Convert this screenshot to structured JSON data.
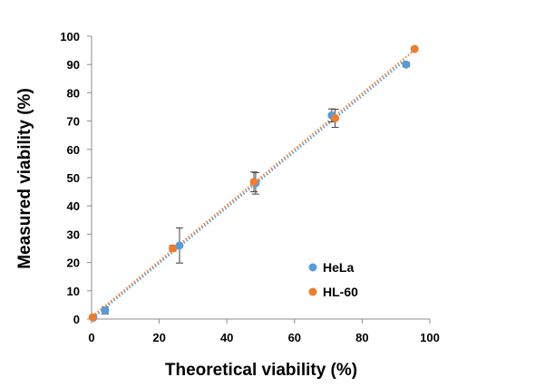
{
  "chart_data": {
    "type": "scatter",
    "xlabel": "Theoretical viability (%)",
    "ylabel": "Measured viability (%)",
    "xlim": [
      0,
      100
    ],
    "ylim": [
      0,
      100
    ],
    "xticks": [
      0,
      20,
      40,
      60,
      80,
      100
    ],
    "yticks": [
      0,
      10,
      20,
      30,
      40,
      50,
      60,
      70,
      80,
      90,
      100
    ],
    "grid": false,
    "legend_position": "bottom-right",
    "trendlines": "dotted linear fit per series",
    "series": [
      {
        "name": "HeLa",
        "color": "#5b9bd5",
        "points": [
          {
            "x": 0.5,
            "y": 0.5,
            "err": 0.4
          },
          {
            "x": 4,
            "y": 3,
            "err": 1.2
          },
          {
            "x": 26,
            "y": 26,
            "err": 6.2
          },
          {
            "x": 48.5,
            "y": 48,
            "err": 3.8
          },
          {
            "x": 71,
            "y": 72,
            "err": 2.3
          },
          {
            "x": 93,
            "y": 90,
            "err": 0.8
          }
        ]
      },
      {
        "name": "HL-60",
        "color": "#ed7d31",
        "points": [
          {
            "x": 0.3,
            "y": 0.6,
            "err": 0.4
          },
          {
            "x": 24,
            "y": 25,
            "err": 1.0
          },
          {
            "x": 48,
            "y": 48.5,
            "err": 3.5
          },
          {
            "x": 72,
            "y": 71,
            "err": 3.2
          },
          {
            "x": 95.5,
            "y": 95.5,
            "err": 0.6
          }
        ]
      }
    ]
  }
}
